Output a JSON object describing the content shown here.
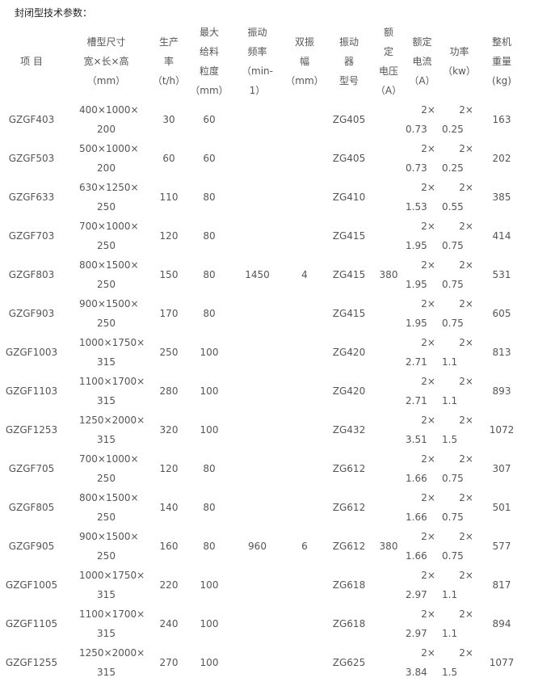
{
  "title": "封闭型技术参数：",
  "headers": [
    [
      "项 目"
    ],
    [
      "槽型尺寸",
      "宽×长×高",
      "（mm）"
    ],
    [
      "生产",
      "率",
      "（t/h）"
    ],
    [
      "最大",
      "给料",
      "粒度",
      "（mm）"
    ],
    [
      "振动",
      "频率",
      "（min-",
      "1）"
    ],
    [
      "双振",
      "幅",
      "（mm）"
    ],
    [
      "振动",
      "器",
      "型号"
    ],
    [
      "额",
      "定",
      "电压",
      "（A）"
    ],
    [
      "额定",
      "电流",
      "（A）"
    ],
    [
      "功率",
      "（kw）"
    ],
    [
      "整机",
      "重量",
      "(kg)"
    ]
  ],
  "groups": [
    {
      "frequency": "1450",
      "amplitude": "4",
      "voltage": "380",
      "rows": [
        [
          "GZGF403",
          "400×1000×",
          "200",
          "30",
          "60",
          "ZG405",
          "2×",
          "0.73",
          "2×",
          "0.25",
          "163"
        ],
        [
          "GZGF503",
          "500×1000×",
          "200",
          "60",
          "60",
          "ZG405",
          "2×",
          "0.73",
          "2×",
          "0.25",
          "202"
        ],
        [
          "GZGF633",
          "630×1250×",
          "250",
          "110",
          "80",
          "ZG410",
          "2×",
          "1.53",
          "2×",
          "0.55",
          "385"
        ],
        [
          "GZGF703",
          "700×1000×",
          "250",
          "120",
          "80",
          "ZG415",
          "2×",
          "1.95",
          "2×",
          "0.75",
          "414"
        ],
        [
          "GZGF803",
          "800×1500×",
          "250",
          "150",
          "80",
          "ZG415",
          "2×",
          "1.95",
          "2×",
          "0.75",
          "531"
        ],
        [
          "GZGF903",
          "900×1500×",
          "250",
          "170",
          "80",
          "ZG415",
          "2×",
          "1.95",
          "2×",
          "0.75",
          "605"
        ],
        [
          "GZGF1003",
          "1000×1750×",
          "315",
          "250",
          "100",
          "ZG420",
          "2×",
          "2.71",
          "2×",
          "1.1",
          "813"
        ],
        [
          "GZGF1103",
          "1100×1700×",
          "315",
          "280",
          "100",
          "ZG420",
          "2×",
          "2.71",
          "2×",
          "1.1",
          "893"
        ],
        [
          "GZGF1253",
          "1250×2000×",
          "315",
          "320",
          "100",
          "ZG432",
          "2×",
          "3.51",
          "2×",
          "1.5",
          "1072"
        ]
      ]
    },
    {
      "frequency": "960",
      "amplitude": "6",
      "voltage": "380",
      "rows": [
        [
          "GZGF705",
          "700×1000×",
          "250",
          "120",
          "80",
          "ZG612",
          "2×",
          "1.66",
          "2×",
          "0.75",
          "307"
        ],
        [
          "GZGF805",
          "800×1500×",
          "250",
          "140",
          "80",
          "ZG612",
          "2×",
          "1.66",
          "2×",
          "0.75",
          "501"
        ],
        [
          "GZGF905",
          "900×1500×",
          "250",
          "160",
          "80",
          "ZG612",
          "2×",
          "1.66",
          "2×",
          "0.75",
          "577"
        ],
        [
          "GZGF1005",
          "1000×1750×",
          "315",
          "220",
          "100",
          "ZG618",
          "2×",
          "2.97",
          "2×",
          "1.1",
          "817"
        ],
        [
          "GZGF1105",
          "1100×1700×",
          "315",
          "240",
          "100",
          "ZG618",
          "2×",
          "2.97",
          "2×",
          "1.1",
          "894"
        ],
        [
          "GZGF1255",
          "1250×2000×",
          "315",
          "270",
          "100",
          "ZG625",
          "2×",
          "3.84",
          "2×",
          "1.5",
          "1077"
        ]
      ]
    }
  ]
}
